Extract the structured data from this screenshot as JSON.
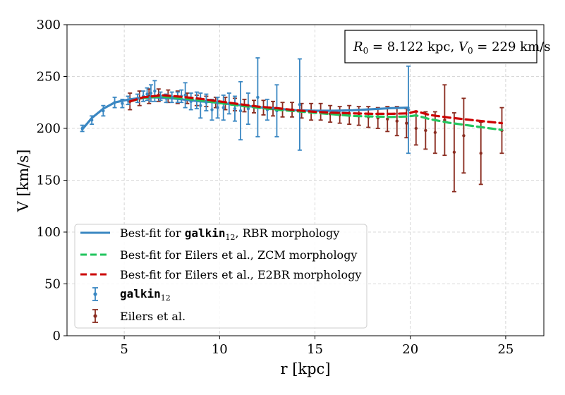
{
  "chart_data": {
    "type": "scatter",
    "xlabel": "r [kpc]",
    "ylabel": "V [km/s]",
    "xlim": [
      2.0,
      27.0
    ],
    "ylim": [
      0,
      300
    ],
    "xticks": [
      "5",
      "10",
      "15",
      "20",
      "25"
    ],
    "yticks": [
      "0",
      "50",
      "100",
      "150",
      "200",
      "250",
      "300"
    ],
    "grid": true,
    "annotation": {
      "r0_label": "R",
      "r0_sub": "0",
      "r0_value": " = 8.122 kpc, ",
      "v0_label": "V",
      "v0_sub": "0",
      "v0_value": " = 229 km/s"
    },
    "legend": {
      "placement": "lower-left",
      "rbr_prefix": "Best-fit for ",
      "rbr_code": "galkin",
      "rbr_sub": "12",
      "rbr_suffix": ", RBR morphology",
      "zcm_label": "Best-fit for Eilers et al., ZCM morphology",
      "e2br_label": "Best-fit for Eilers et al., E2BR morphology",
      "galkin_code": "galkin",
      "galkin_sub": "12",
      "eilers_label": "Eilers et al."
    },
    "colors": {
      "galkin": "#3a87c2",
      "eilers": "#8a2c20",
      "zcm": "#22c55e",
      "e2br": "#cc0000"
    },
    "series": [
      {
        "name": "galkin12",
        "kind": "errorbar",
        "r": [
          2.8,
          3.3,
          3.9,
          4.5,
          4.9,
          5.2,
          5.7,
          6.0,
          6.2,
          6.4,
          6.6,
          6.9,
          7.2,
          7.5,
          7.8,
          8.0,
          8.2,
          8.5,
          8.8,
          9.0,
          9.3,
          9.6,
          9.9,
          10.2,
          10.5,
          10.8,
          11.1,
          11.5,
          12.0,
          12.5,
          13.0,
          14.2,
          19.9
        ],
        "v": [
          200,
          208,
          217,
          225,
          224,
          227,
          229,
          231,
          233,
          234,
          236,
          231,
          229,
          230,
          230,
          231,
          232,
          226,
          227,
          222,
          225,
          218,
          220,
          220,
          224,
          219,
          217,
          219,
          230,
          218,
          217,
          223,
          218
        ],
        "err": [
          3,
          4,
          5,
          5,
          4,
          4,
          4,
          5,
          6,
          8,
          10,
          4,
          4,
          5,
          5,
          6,
          12,
          8,
          8,
          12,
          8,
          10,
          10,
          12,
          10,
          12,
          28,
          15,
          38,
          10,
          25,
          44,
          42
        ]
      },
      {
        "name": "Eilers et al.",
        "kind": "errorbar",
        "r": [
          5.3,
          5.8,
          6.3,
          6.8,
          7.3,
          7.8,
          8.3,
          8.8,
          9.3,
          9.8,
          10.3,
          10.8,
          11.3,
          11.8,
          12.3,
          12.8,
          13.3,
          13.8,
          14.3,
          14.8,
          15.3,
          15.8,
          16.3,
          16.8,
          17.3,
          17.8,
          18.3,
          18.8,
          19.3,
          19.8,
          20.3,
          20.8,
          21.3,
          21.8,
          22.3,
          22.8,
          23.7,
          24.8
        ],
        "v": [
          226,
          229,
          231,
          232,
          231,
          230,
          229,
          227,
          226,
          225,
          224,
          223,
          222,
          221,
          220,
          219,
          218,
          218,
          217,
          216,
          216,
          214,
          213,
          213,
          212,
          211,
          210,
          209,
          207,
          205,
          200,
          198,
          196,
          208,
          177,
          193,
          176,
          198
        ],
        "err": [
          8,
          7,
          7,
          6,
          6,
          6,
          5,
          5,
          5,
          5,
          6,
          6,
          6,
          6,
          7,
          7,
          7,
          7,
          7,
          8,
          8,
          8,
          8,
          9,
          9,
          10,
          10,
          12,
          14,
          14,
          16,
          18,
          20,
          34,
          38,
          36,
          30,
          22
        ]
      },
      {
        "name": "Best-fit RBR",
        "kind": "line",
        "r": [
          2.8,
          3.3,
          3.9,
          4.5,
          5.0,
          5.5,
          6.0,
          6.5,
          7.0,
          7.5,
          8.0,
          8.5,
          9.0,
          9.5,
          10.0,
          11.0,
          12.0,
          13.0,
          14.0,
          15.0,
          16.0,
          17.0,
          18.0,
          19.0,
          19.9
        ],
        "v": [
          199,
          210,
          219,
          225,
          227,
          228.5,
          229.5,
          230,
          229.5,
          229,
          228,
          227,
          226,
          225.5,
          224.5,
          222.5,
          220.5,
          219,
          217.5,
          217,
          217,
          217.5,
          218.5,
          219.5,
          220
        ]
      },
      {
        "name": "Best-fit ZCM",
        "kind": "line",
        "r": [
          5.3,
          6.0,
          7.0,
          8.0,
          9.0,
          10.0,
          11.0,
          12.0,
          13.0,
          14.0,
          15.0,
          16.0,
          17.0,
          18.0,
          19.0,
          19.9,
          20.3,
          21.0,
          22.0,
          23.0,
          24.0,
          24.8
        ],
        "v": [
          226,
          229.5,
          230.5,
          229,
          227,
          224.5,
          222,
          220,
          218,
          216.5,
          215,
          213.5,
          212,
          211.5,
          211,
          211.5,
          212.5,
          209,
          205.5,
          203,
          200.5,
          198.5
        ]
      },
      {
        "name": "Best-fit E2BR",
        "kind": "line",
        "r": [
          5.3,
          6.0,
          7.0,
          8.0,
          9.0,
          10.0,
          11.0,
          12.0,
          13.0,
          14.0,
          15.0,
          16.0,
          17.0,
          18.0,
          19.0,
          19.9,
          20.3,
          21.0,
          22.0,
          23.0,
          24.0,
          24.8
        ],
        "v": [
          226,
          230,
          232,
          230.5,
          228.5,
          226,
          223.5,
          221,
          219.5,
          217.5,
          216,
          215,
          214.5,
          214,
          214,
          214.5,
          216.5,
          213,
          210.5,
          208.5,
          206.5,
          205
        ]
      }
    ]
  }
}
